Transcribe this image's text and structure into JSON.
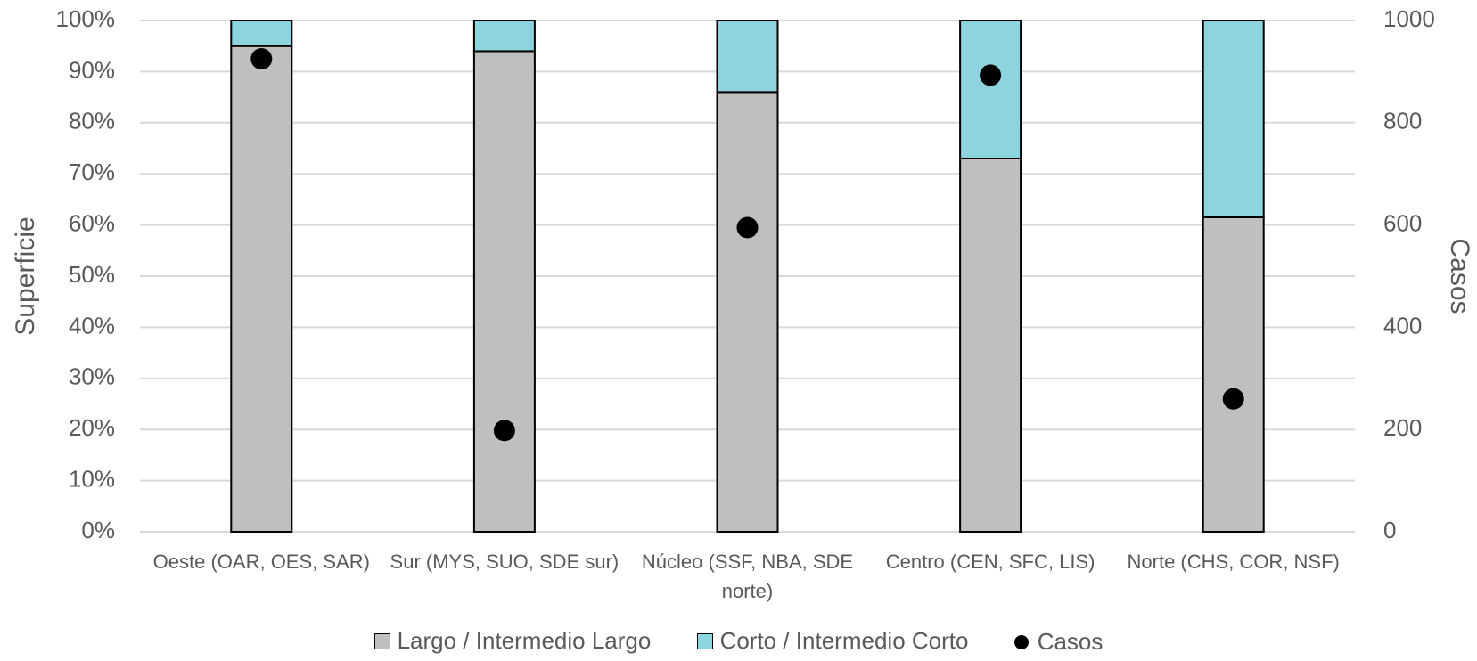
{
  "chart_data": {
    "type": "bar",
    "stacked": true,
    "categories": [
      [
        "Oeste (OAR, OES, SAR)"
      ],
      [
        "Sur (MYS, SUO, SDE sur)"
      ],
      [
        "Núcleo (SSF, NBA, SDE",
        "norte)"
      ],
      [
        "Centro (CEN, SFC, LIS)"
      ],
      [
        "Norte (CHS, COR, NSF)"
      ]
    ],
    "series": [
      {
        "name": "Largo / Intermedio Largo",
        "axis": "left",
        "color": "#bfbfbf",
        "values": [
          95,
          94,
          86,
          73,
          61.5
        ]
      },
      {
        "name": "Corto / Intermedio Corto",
        "axis": "left",
        "color": "#8ed4de",
        "values": [
          5,
          6,
          14,
          27,
          38.5
        ]
      },
      {
        "name": "Casos",
        "axis": "right",
        "type": "scatter",
        "color": "#000000",
        "values": [
          925,
          198,
          595,
          893,
          260
        ]
      }
    ],
    "ylabel": "Superficie",
    "y2label": "Casos",
    "ylim": [
      0,
      100
    ],
    "y2lim": [
      0,
      1000
    ],
    "yticks": [
      "0%",
      "10%",
      "20%",
      "30%",
      "40%",
      "50%",
      "60%",
      "70%",
      "80%",
      "90%",
      "100%"
    ],
    "y2ticks": [
      "0",
      "200",
      "400",
      "600",
      "800",
      "1000"
    ],
    "grid": true,
    "legend_position": "bottom"
  }
}
